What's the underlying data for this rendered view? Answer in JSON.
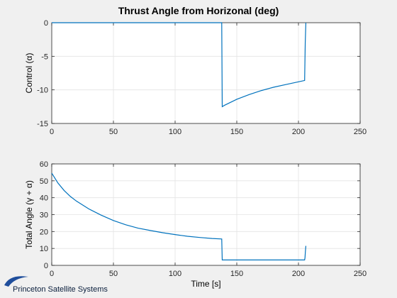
{
  "figure": {
    "title": "Thrust Angle from Horizonal (deg)",
    "background": "#f0f0f0",
    "axes_background": "#ffffff",
    "line_color": "#0072bd",
    "grid_color": "#e3e3e3",
    "logo": {
      "text": "Princeton Satellite Systems",
      "icon": "orbit-swoosh-icon",
      "color": "#1f4e9c"
    }
  },
  "chart_data": [
    {
      "type": "line",
      "title": "Thrust Angle from Horizonal (deg)",
      "xlabel": "",
      "ylabel": "Control (α)",
      "xlim": [
        0,
        250
      ],
      "ylim": [
        -15,
        0
      ],
      "xticks": [
        0,
        50,
        100,
        150,
        200,
        250
      ],
      "yticks": [
        -15,
        -10,
        -5,
        0
      ],
      "grid": true,
      "series": [
        {
          "x": [
            0,
            137.8,
            138.2,
            140,
            150,
            160,
            170,
            180,
            190,
            200,
            205,
            205.5,
            206
          ],
          "y": [
            0,
            0,
            -12.5,
            -12.3,
            -11.4,
            -10.7,
            -10.1,
            -9.6,
            -9.2,
            -8.8,
            -8.6,
            -3,
            0
          ]
        }
      ]
    },
    {
      "type": "line",
      "xlabel": "Time [s]",
      "ylabel": "Total Angle (γ + α)",
      "xlim": [
        0,
        250
      ],
      "ylim": [
        0,
        60
      ],
      "xticks": [
        0,
        50,
        100,
        150,
        200,
        250
      ],
      "yticks": [
        0,
        10,
        20,
        30,
        40,
        50,
        60
      ],
      "grid": true,
      "series": [
        {
          "x": [
            0,
            5,
            10,
            15,
            20,
            30,
            40,
            50,
            60,
            70,
            80,
            90,
            100,
            110,
            120,
            130,
            137.8,
            138.2,
            150,
            175,
            200,
            205,
            205.3,
            205.6,
            206
          ],
          "y": [
            54.5,
            48.7,
            44.3,
            40.8,
            38.0,
            33.4,
            29.7,
            26.5,
            24.0,
            22.0,
            20.6,
            19.3,
            18.2,
            17.2,
            16.5,
            15.9,
            15.6,
            3.2,
            3.2,
            3.2,
            3.2,
            3.2,
            4.5,
            8.0,
            11.5
          ]
        }
      ]
    }
  ]
}
